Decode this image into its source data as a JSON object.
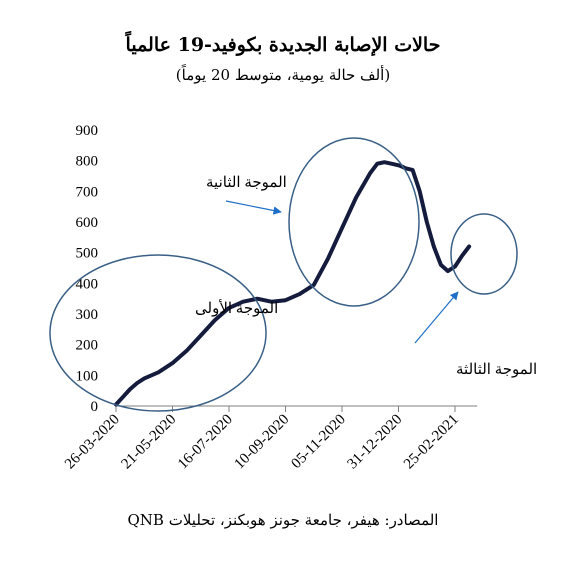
{
  "chart_data": {
    "type": "line",
    "title": "حالات الإصابة الجديدة بكوفيد-19 عالمياً",
    "subtitle": "(ألف حالة يومية، متوسط 20 يوماً)",
    "source": "المصادر: هيفر، جامعة جونز هوبكنز، تحليلات QNB",
    "xlabel": "",
    "ylabel": "",
    "ylim": [
      0,
      900
    ],
    "yticks": [
      "0",
      "100",
      "200",
      "300",
      "400",
      "500",
      "600",
      "700",
      "800",
      "900"
    ],
    "xticks": [
      "26-03-2020",
      "21-05-2020",
      "16-07-2020",
      "10-09-2020",
      "05-11-2020",
      "31-12-2020",
      "25-02-2021"
    ],
    "grid": false,
    "series": [
      {
        "color": "#141b3c",
        "x": [
          "2020-03-26",
          "2020-04-02",
          "2020-04-09",
          "2020-04-16",
          "2020-04-23",
          "2020-05-07",
          "2020-05-21",
          "2020-06-04",
          "2020-06-18",
          "2020-07-02",
          "2020-07-16",
          "2020-07-30",
          "2020-08-13",
          "2020-08-20",
          "2020-08-27",
          "2020-09-10",
          "2020-09-24",
          "2020-10-08",
          "2020-10-22",
          "2020-11-05",
          "2020-11-19",
          "2020-12-03",
          "2020-12-10",
          "2020-12-17",
          "2020-12-24",
          "2020-12-31",
          "2021-01-04",
          "2021-01-07",
          "2021-01-14",
          "2021-01-21",
          "2021-01-28",
          "2021-02-04",
          "2021-02-11",
          "2021-02-18",
          "2021-02-25",
          "2021-03-04",
          "2021-03-11"
        ],
        "values": [
          5,
          30,
          55,
          75,
          90,
          110,
          140,
          180,
          230,
          280,
          320,
          340,
          350,
          345,
          340,
          345,
          365,
          395,
          480,
          580,
          680,
          760,
          790,
          795,
          790,
          785,
          780,
          775,
          770,
          700,
          600,
          520,
          460,
          440,
          455,
          490,
          520
        ]
      }
    ],
    "annotations": [
      {
        "text": "الموجة الأولى",
        "x": "2020-06-10",
        "y": 330
      },
      {
        "text": "الموجة الثانية",
        "x": "2020-08-20",
        "y": 750
      },
      {
        "text": "الموجة الثالثة",
        "x": "2021-01-21",
        "y": 120
      }
    ]
  }
}
